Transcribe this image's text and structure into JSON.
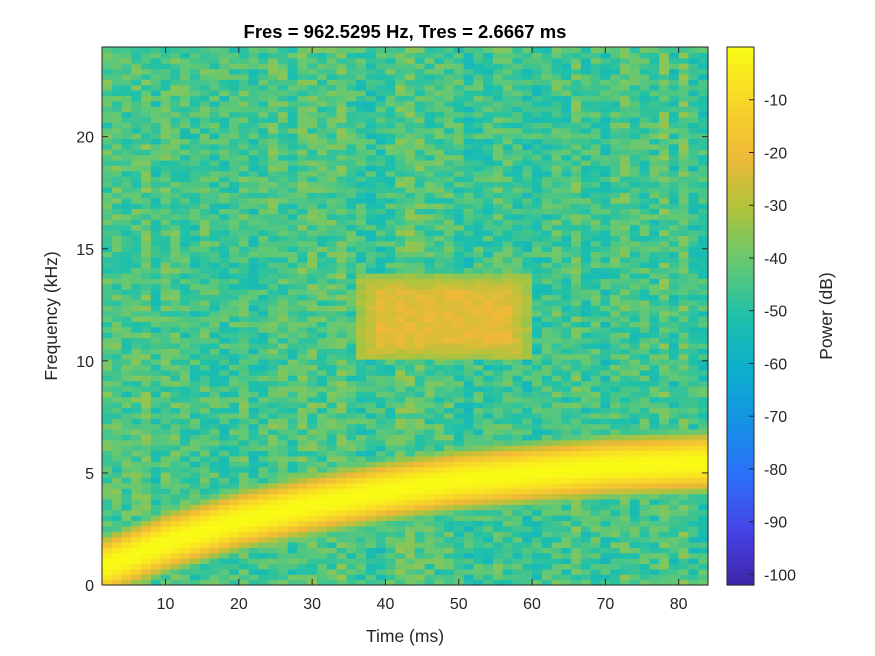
{
  "chart_data": {
    "type": "heatmap",
    "title": "Fres = 962.5295 Hz, Tres = 2.6667 ms",
    "xlabel": "Time (ms)",
    "ylabel": "Frequency (kHz)",
    "colorbar_label": "Power (dB)",
    "colormap": "parula",
    "xlim": [
      1.3333,
      84
    ],
    "ylim": [
      0,
      24
    ],
    "clim": [
      -102,
      0
    ],
    "grid": false,
    "x_ticks": [
      10,
      20,
      30,
      40,
      50,
      60,
      70,
      80
    ],
    "y_ticks": [
      0,
      5,
      10,
      15,
      20
    ],
    "colorbar_ticks": [
      -10,
      -20,
      -30,
      -40,
      -50,
      -60,
      -70,
      -80,
      -90,
      -100
    ],
    "noise_floor_db": -45,
    "features": [
      {
        "kind": "chirp",
        "peak_db": 0,
        "bandwidth_khz": 2.4,
        "center_frequency_khz": [
          [
            1.3333,
            0.8
          ],
          [
            10,
            1.9
          ],
          [
            20,
            2.9
          ],
          [
            30,
            3.6
          ],
          [
            40,
            4.2
          ],
          [
            50,
            4.7
          ],
          [
            60,
            5.0
          ],
          [
            70,
            5.3
          ],
          [
            84,
            5.5
          ]
        ]
      },
      {
        "kind": "burst",
        "peak_db": -20,
        "time_range_ms": [
          36,
          60
        ],
        "frequency_range_khz": [
          10,
          13.8
        ]
      }
    ]
  }
}
